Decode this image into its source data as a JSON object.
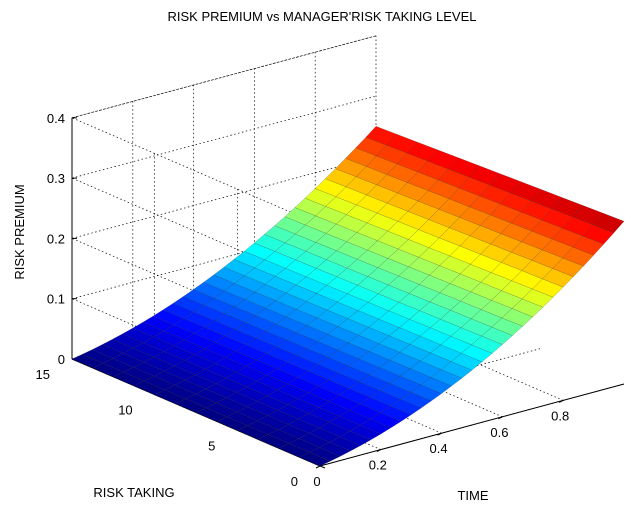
{
  "chart_data": {
    "type": "surface",
    "title": "RISK PREMIUM vs MANAGER'RISK TAKING LEVEL",
    "xlabel": "TIME",
    "ylabel": "RISK TAKING",
    "zlabel": "RISK PREMIUM",
    "x_ticks": [
      "0",
      "0.2",
      "0.4",
      "0.6",
      "0.8"
    ],
    "y_ticks": [
      "0",
      "5",
      "10",
      "15"
    ],
    "z_ticks": [
      "0",
      "0.1",
      "0.2",
      "0.3",
      "0.4"
    ],
    "xlim": [
      0,
      1
    ],
    "ylim": [
      0,
      15
    ],
    "zlim": [
      0,
      0.4
    ],
    "x_range": [
      0,
      1
    ],
    "y_range": [
      0,
      15
    ],
    "surface_corners": [
      {
        "x": 0,
        "y": 15,
        "z": 0.0
      },
      {
        "x": 0,
        "y": 0,
        "z": 0.0
      },
      {
        "x": 1,
        "y": 15,
        "z": 0.25
      },
      {
        "x": 1,
        "y": 0,
        "z": 0.27
      }
    ],
    "colormap": "jet",
    "grid": true
  }
}
